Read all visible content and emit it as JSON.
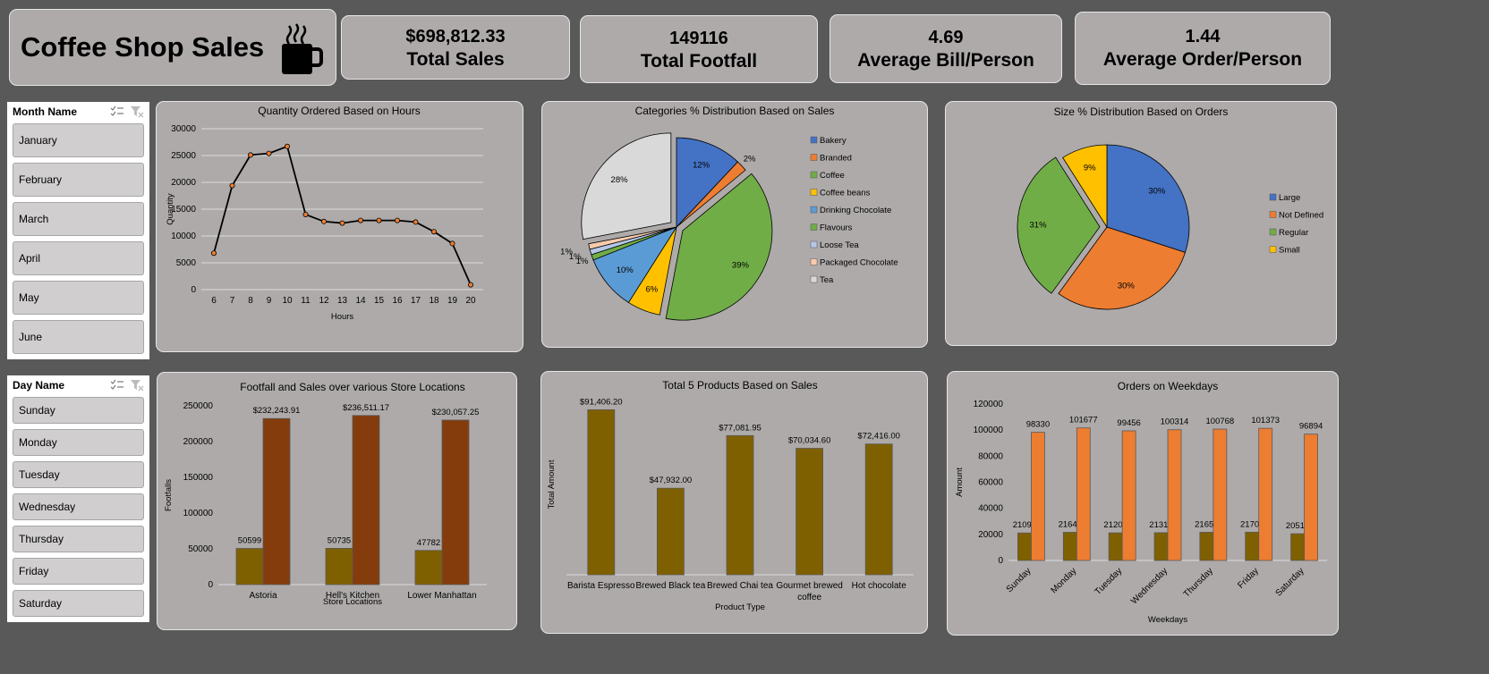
{
  "title": "Coffee Shop Sales",
  "kpis": [
    {
      "value": "$698,812.33",
      "label": "Total Sales"
    },
    {
      "value": "149116",
      "label": "Total Footfall"
    },
    {
      "value": "4.69",
      "label": "Average Bill/Person"
    },
    {
      "value": "1.44",
      "label": "Average Order/Person"
    }
  ],
  "slicers": {
    "month": {
      "header": "Month Name",
      "items": [
        "January",
        "February",
        "March",
        "April",
        "May",
        "June"
      ]
    },
    "day": {
      "header": "Day Name",
      "items": [
        "Sunday",
        "Monday",
        "Tuesday",
        "Wednesday",
        "Thursday",
        "Friday",
        "Saturday"
      ]
    }
  },
  "chart_data": [
    {
      "id": "hours",
      "type": "line",
      "title": "Quantity Ordered Based on Hours",
      "xlabel": "Hours",
      "ylabel": "Quantity",
      "x": [
        6,
        7,
        8,
        9,
        10,
        11,
        12,
        13,
        14,
        15,
        16,
        17,
        18,
        19,
        20
      ],
      "y": [
        6800,
        19400,
        25100,
        25400,
        26700,
        14000,
        12700,
        12400,
        12900,
        12900,
        12900,
        12600,
        10800,
        8600,
        900
      ],
      "ylim": [
        0,
        30000
      ],
      "yticks": [
        0,
        5000,
        10000,
        15000,
        20000,
        25000,
        30000
      ],
      "grid": true,
      "color": "#000000",
      "marker_color": "#ed7d31"
    },
    {
      "id": "categories",
      "type": "pie",
      "title": "Categories % Distribution Based on Sales",
      "labels": [
        "Bakery",
        "Branded",
        "Coffee",
        "Coffee beans",
        "Drinking Chocolate",
        "Flavours",
        "Loose Tea",
        "Packaged Chocolate",
        "Tea"
      ],
      "values": [
        12,
        2,
        39,
        6,
        10,
        1,
        1,
        1,
        28
      ],
      "value_labels": [
        "12%",
        "2%",
        "39%",
        "6%",
        "10%",
        "1%",
        "1%",
        "1%",
        "28%"
      ],
      "colors": [
        "#4472c4",
        "#ed7d31",
        "#70ad47",
        "#ffc000",
        "#5b9bd5",
        "#70ad47",
        "#b4c7e7",
        "#f8cbad",
        "#d9d9d9"
      ],
      "legend": "right"
    },
    {
      "id": "size",
      "type": "pie",
      "title": "Size % Distribution Based on Orders",
      "labels": [
        "Large",
        "Not Defined",
        "Regular",
        "Small"
      ],
      "values": [
        30,
        30,
        31,
        9
      ],
      "value_labels": [
        "30%",
        "30%",
        "31%",
        "9%"
      ],
      "colors": [
        "#4472c4",
        "#ed7d31",
        "#70ad47",
        "#ffc000"
      ],
      "legend": "right"
    },
    {
      "id": "stores",
      "type": "bar",
      "title": "Footfall and Sales over various Store Locations",
      "xlabel": "Store Locations",
      "ylabel": "Footfalls",
      "categories": [
        "Astoria",
        "Hell's Kitchen",
        "Lower Manhattan"
      ],
      "series": [
        {
          "values": [
            50599,
            50735,
            47782
          ],
          "labels": [
            "50599",
            "50735",
            "47782"
          ],
          "color": "#7f6000"
        },
        {
          "values": [
            232243.91,
            236511.17,
            230057.25
          ],
          "labels": [
            "$232,243.91",
            "$236,511.17",
            "$230,057.25"
          ],
          "color": "#843c0c"
        }
      ],
      "ylim": [
        0,
        250000
      ],
      "yticks": [
        0,
        50000,
        100000,
        150000,
        200000,
        250000
      ]
    },
    {
      "id": "products",
      "type": "bar",
      "title": "Total 5 Products Based on Sales",
      "xlabel": "Product Type",
      "ylabel": "Total Amount",
      "categories": [
        "Barista Espresso",
        "Brewed Black tea",
        "Brewed Chai tea",
        "Gourmet brewed coffee",
        "Hot chocolate"
      ],
      "values": [
        91406.2,
        47932.0,
        77081.95,
        70034.6,
        72416.0
      ],
      "value_labels": [
        "$91,406.20",
        "$47,932.00",
        "$77,081.95",
        "$70,034.60",
        "$72,416.00"
      ],
      "color": "#7f6000"
    },
    {
      "id": "weekdays",
      "type": "bar",
      "title": "Orders on Weekdays",
      "xlabel": "Weekdays",
      "ylabel": "Amount",
      "categories": [
        "Sunday",
        "Monday",
        "Tuesday",
        "Wednesday",
        "Thursday",
        "Friday",
        "Saturday"
      ],
      "series": [
        {
          "values": [
            21096,
            21643,
            21202,
            21310,
            21654,
            21701,
            20510
          ],
          "labels": [
            "21096",
            "21643",
            "21202",
            "21310",
            "21654",
            "21701",
            "20510"
          ],
          "color": "#7f6000"
        },
        {
          "values": [
            98330,
            101677,
            99456,
            100314,
            100768,
            101373,
            96894
          ],
          "labels": [
            "98330",
            "101677",
            "99456",
            "100314",
            "100768",
            "101373",
            "96894"
          ],
          "color": "#ed7d31"
        }
      ],
      "ylim": [
        0,
        120000
      ],
      "yticks": [
        0,
        20000,
        40000,
        60000,
        80000,
        100000,
        120000
      ]
    }
  ]
}
